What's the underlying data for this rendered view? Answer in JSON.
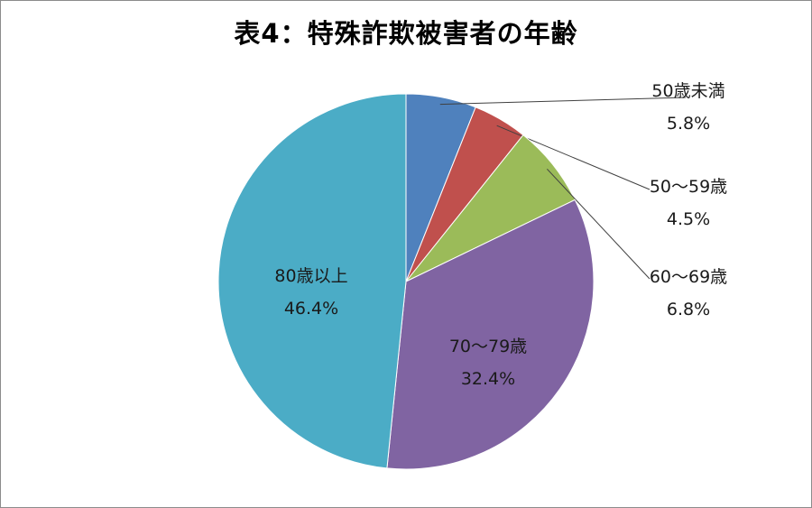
{
  "chart_data": {
    "type": "pie",
    "title": "表4：特殊詐欺被害者の年齢",
    "slices": [
      {
        "name": "50歳未満",
        "value": 5.8,
        "value_label": "5.8%",
        "color": "#4f81bd"
      },
      {
        "name": "50～59歳",
        "value": 4.5,
        "value_label": "4.5%",
        "color": "#c0504d"
      },
      {
        "name": "60～69歳",
        "value": 6.8,
        "value_label": "6.8%",
        "color": "#9bbb59"
      },
      {
        "name": "70～79歳",
        "value": 32.4,
        "value_label": "32.4%",
        "color": "#8064a2"
      },
      {
        "name": "80歳以上",
        "value": 46.4,
        "value_label": "46.4%",
        "color": "#4bacc6"
      }
    ],
    "start": "12 o'clock",
    "direction": "clockwise",
    "legend": "none"
  }
}
